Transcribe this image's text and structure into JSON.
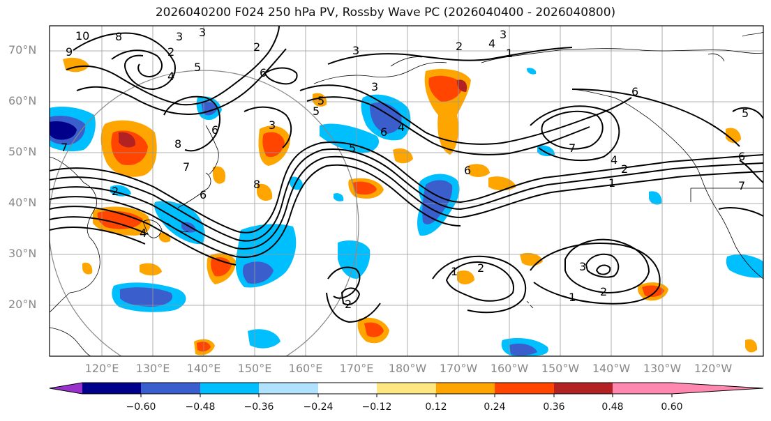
{
  "title": "2026040200 F024 250 hPa PV, Rossby Wave PC (2026040400 - 2026040800)",
  "lat_labels": [
    "70°N",
    "60°N",
    "50°N",
    "40°N",
    "30°N",
    "20°N"
  ],
  "lon_labels": [
    "120°E",
    "130°E",
    "140°E",
    "150°E",
    "160°E",
    "170°E",
    "180°W",
    "170°W",
    "160°W",
    "150°W",
    "140°W",
    "130°W",
    "120°W"
  ],
  "colorbar": {
    "colors": [
      "#9932cc",
      "#00008b",
      "#3a5fcd",
      "#00bfff",
      "#b0e2ff",
      "#ffffff",
      "#ffe680",
      "#ffa500",
      "#ff4500",
      "#b22222",
      "#ff88b0",
      "#ff88b0"
    ],
    "tick_labels": [
      "−0.60",
      "−0.48",
      "−0.36",
      "−0.24",
      "−0.12",
      "0.12",
      "0.24",
      "0.36",
      "0.48",
      "0.60"
    ]
  },
  "contour_labels": [
    "10",
    "9",
    "8",
    "2",
    "3",
    "3",
    "2",
    "6",
    "5",
    "4",
    "5",
    "3",
    "2",
    "4",
    "3",
    "1",
    "6",
    "5",
    "7",
    "8",
    "6",
    "4",
    "5",
    "3",
    "3",
    "7",
    "6",
    "4",
    "8",
    "7",
    "6",
    "2",
    "1",
    "1",
    "2",
    "2",
    "3",
    "1",
    "2",
    "7",
    "6",
    "6",
    "5",
    "2",
    "4"
  ]
}
